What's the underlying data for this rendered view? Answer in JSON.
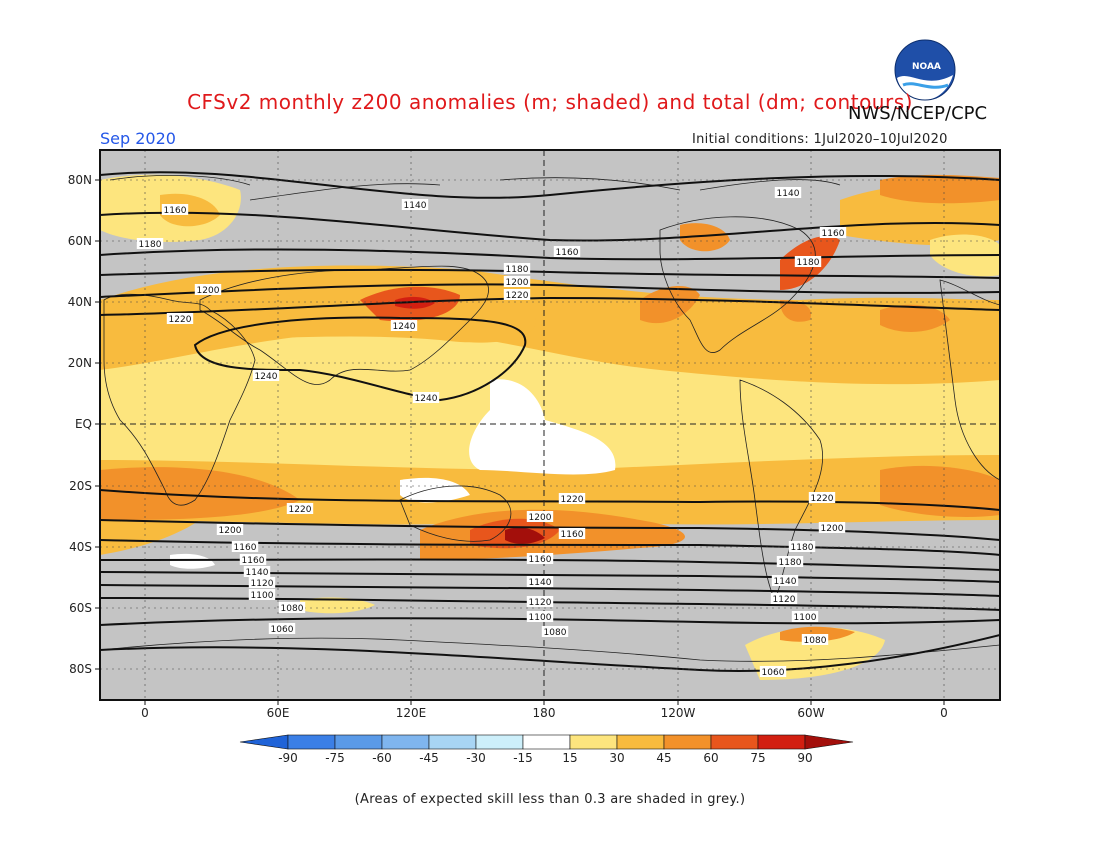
{
  "header": {
    "title": "CFSv2 monthly z200 anomalies (m; shaded) and total (dm; contours)",
    "agency": "NWS/NCEP/CPC",
    "month": "Sep 2020",
    "initial_conditions": "Initial conditions: 1Jul2020–10Jul2020"
  },
  "logo": {
    "text": "NOAA"
  },
  "map": {
    "lat_labels": [
      "80N",
      "60N",
      "40N",
      "20N",
      "EQ",
      "20S",
      "40S",
      "60S",
      "80S"
    ],
    "lon_labels": [
      "0",
      "60E",
      "120E",
      "180",
      "120W",
      "60W",
      "0"
    ],
    "contour_values": [
      "1140",
      "1140",
      "1160",
      "1160",
      "1160",
      "1180",
      "1180",
      "1180",
      "1200",
      "1200",
      "1220",
      "1220",
      "1240",
      "1240",
      "1240",
      "1220",
      "1220",
      "1220",
      "1200",
      "1200",
      "1200",
      "1160",
      "1160",
      "1160",
      "1160",
      "1140",
      "1140",
      "1140",
      "1120",
      "1120",
      "1120",
      "1100",
      "1100",
      "1100",
      "1080",
      "1080",
      "1080",
      "1060",
      "1060",
      "1180",
      "1180"
    ]
  },
  "colorbar": {
    "ticks": [
      "-90",
      "-75",
      "-60",
      "-45",
      "-30",
      "-15",
      "15",
      "30",
      "45",
      "60",
      "75",
      "90"
    ],
    "colors": [
      "#1f63d8",
      "#3b7fe6",
      "#5a9ae8",
      "#7fb5ee",
      "#a8d5f4",
      "#cdeffa",
      "#ffffff",
      "#fde57e",
      "#f8bb3e",
      "#f2912a",
      "#e8561c",
      "#d21f11",
      "#a30f0b"
    ]
  },
  "footnote": "(Areas of expected skill less than 0.3 are shaded in grey.)"
}
